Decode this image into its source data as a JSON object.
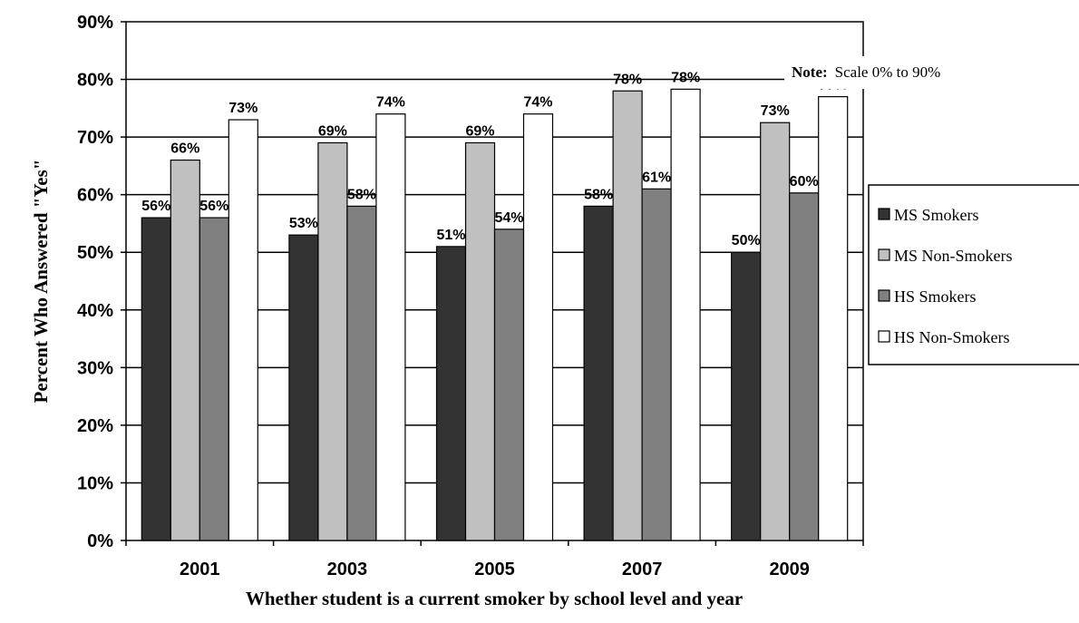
{
  "chart_data": {
    "type": "bar",
    "categories": [
      "2001",
      "2003",
      "2005",
      "2007",
      "2009"
    ],
    "series": [
      {
        "name": "MS Smokers",
        "color": "#333333",
        "values": [
          56,
          53,
          51,
          58,
          50
        ],
        "labels": [
          "56%",
          "53%",
          "51%",
          "58%",
          "50%"
        ]
      },
      {
        "name": "MS Non-Smokers",
        "color": "#c0c0c0",
        "values": [
          66,
          69,
          69,
          78,
          72.5
        ],
        "labels": [
          "66%",
          "69%",
          "69%",
          "78%",
          "73%"
        ]
      },
      {
        "name": "HS Smokers",
        "color": "#808080",
        "values": [
          56,
          58,
          54,
          61,
          60.3
        ],
        "labels": [
          "56%",
          "58%",
          "54%",
          "61%",
          "60%"
        ]
      },
      {
        "name": "HS Non-Smokers",
        "color": "#ffffff",
        "values": [
          73,
          74,
          74,
          78.3,
          77
        ],
        "labels": [
          "73%",
          "74%",
          "74%",
          "78%",
          "77%"
        ]
      }
    ],
    "yticks": [
      "0%",
      "10%",
      "20%",
      "30%",
      "40%",
      "50%",
      "60%",
      "70%",
      "80%",
      "90%"
    ],
    "ylim": [
      0,
      90
    ],
    "xlabel": "Whether student is a current smoker by school level and year",
    "ylabel": "Percent Who Answered \"Yes\"",
    "grid": true,
    "legend": "right",
    "note": {
      "label": "Note:",
      "text": "Scale 0% to 90%"
    }
  }
}
